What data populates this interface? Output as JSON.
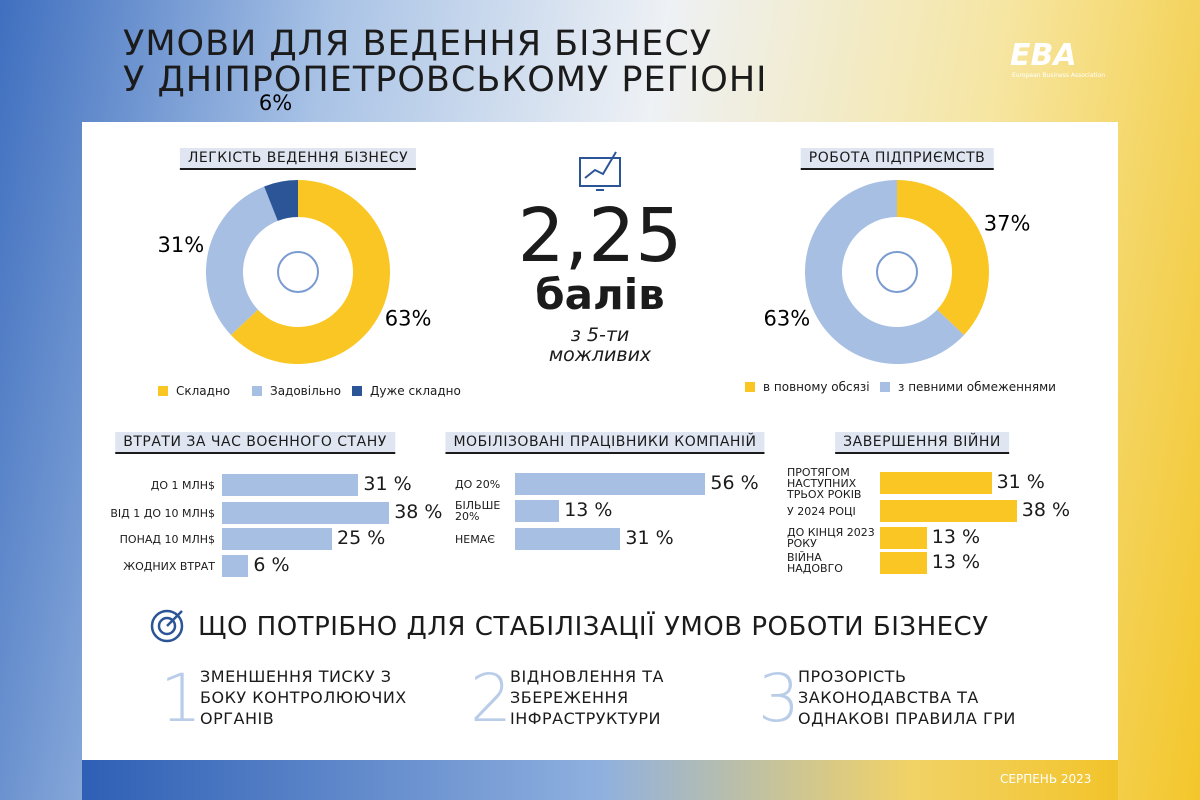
{
  "header": {
    "title_line1": "УМОВИ ДЛЯ ВЕДЕННЯ БІЗНЕСУ",
    "title_line2": "У ДНІПРОПЕТРОВСЬКОМУ РЕГІОНІ",
    "logo": "EBA",
    "logo_caption": "European Business Association"
  },
  "chart_data": [
    {
      "type": "pie",
      "title": "ЛЕГКІСТЬ ВЕДЕННЯ БІЗНЕСУ",
      "categories": [
        "Складно",
        "Задовільно",
        "Дуже складно"
      ],
      "values": [
        63,
        31,
        6
      ],
      "value_labels": [
        "63%",
        "31%",
        "6%"
      ],
      "colors": [
        "#f9c623",
        "#a6bfe2",
        "#2b5596"
      ]
    },
    {
      "type": "pie",
      "title": "РОБОТА ПІДПРИЄМСТВ",
      "categories": [
        "в повному обсязі",
        "з певними обмеженнями"
      ],
      "values": [
        37,
        63
      ],
      "value_labels": [
        "37%",
        "63%"
      ],
      "colors": [
        "#f9c623",
        "#a6bfe2"
      ]
    },
    {
      "type": "bar",
      "title": "ВТРАТИ ЗА ЧАС ВОЄННОГО СТАНУ",
      "categories": [
        "ДО 1 МЛН$",
        "ВІД 1 ДО 10 МЛН$",
        "ПОНАД 10 МЛН$",
        "ЖОДНИХ ВТРАТ"
      ],
      "values": [
        31,
        38,
        25,
        6
      ],
      "value_labels": [
        "31 %",
        "38 %",
        "25 %",
        "6 %"
      ],
      "color": "#a6bfe2"
    },
    {
      "type": "bar",
      "title": "МОБІЛІЗОВАНІ ПРАЦІВНИКИ КОМПАНІЙ",
      "categories": [
        "ДО 20%",
        "БІЛЬШЕ 20%",
        "НЕМАЄ"
      ],
      "values": [
        56,
        13,
        31
      ],
      "value_labels": [
        "56 %",
        "13 %",
        "31 %"
      ],
      "color": "#a6bfe2"
    },
    {
      "type": "bar",
      "title": "ЗАВЕРШЕННЯ ВІЙНИ",
      "categories": [
        "ПРОТЯГОМ НАСТУПНИХ ТРЬОХ РОКІВ",
        "У 2024 РОЦІ",
        "ДО КІНЦЯ 2023 РОКУ",
        "ВІЙНА НАДОВГО"
      ],
      "values": [
        31,
        38,
        13,
        13
      ],
      "value_labels": [
        "31 %",
        "38 %",
        "13 %",
        "13 %"
      ],
      "color": "#f9c623"
    }
  ],
  "score": {
    "value": "2,25",
    "unit": "балів",
    "note": "з 5-ти можливих"
  },
  "needs": {
    "title": "ЩО ПОТРІБНО ДЛЯ СТАБІЛІЗАЦІЇ УМОВ РОБОТИ БІЗНЕСУ",
    "items": [
      {
        "number": "1",
        "text": "ЗМЕНШЕННЯ ТИСКУ З БОКУ КОНТРОЛЮЮЧИХ ОРГАНІВ"
      },
      {
        "number": "2",
        "text": "ВІДНОВЛЕННЯ ТА ЗБЕРЕЖЕННЯ ІНФРАСТРУКТУРИ"
      },
      {
        "number": "3",
        "text": "ПРОЗОРІСТЬ ЗАКОНОДАВСТВА ТА ОДНАКОВІ ПРАВИЛА ГРИ"
      }
    ]
  },
  "footer": "СЕРПЕНЬ 2023"
}
